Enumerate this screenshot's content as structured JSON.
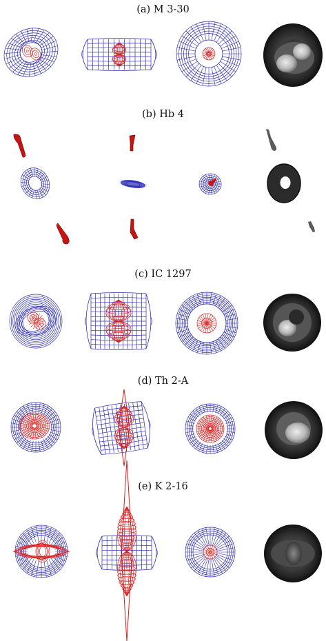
{
  "figure": {
    "colors": {
      "outer_wire": "#2a2ab8",
      "inner_wire": "#d81c1c",
      "render_dark": "#1e1e1e",
      "render_light": "#d8d8d8"
    },
    "panels": [
      {
        "caption": "(a) M 3-30"
      },
      {
        "caption": "(b) Hb 4"
      },
      {
        "caption": "(c) IC 1297"
      },
      {
        "caption": "(d) Th 2-A"
      },
      {
        "caption": "(e) K 2-16"
      }
    ]
  }
}
